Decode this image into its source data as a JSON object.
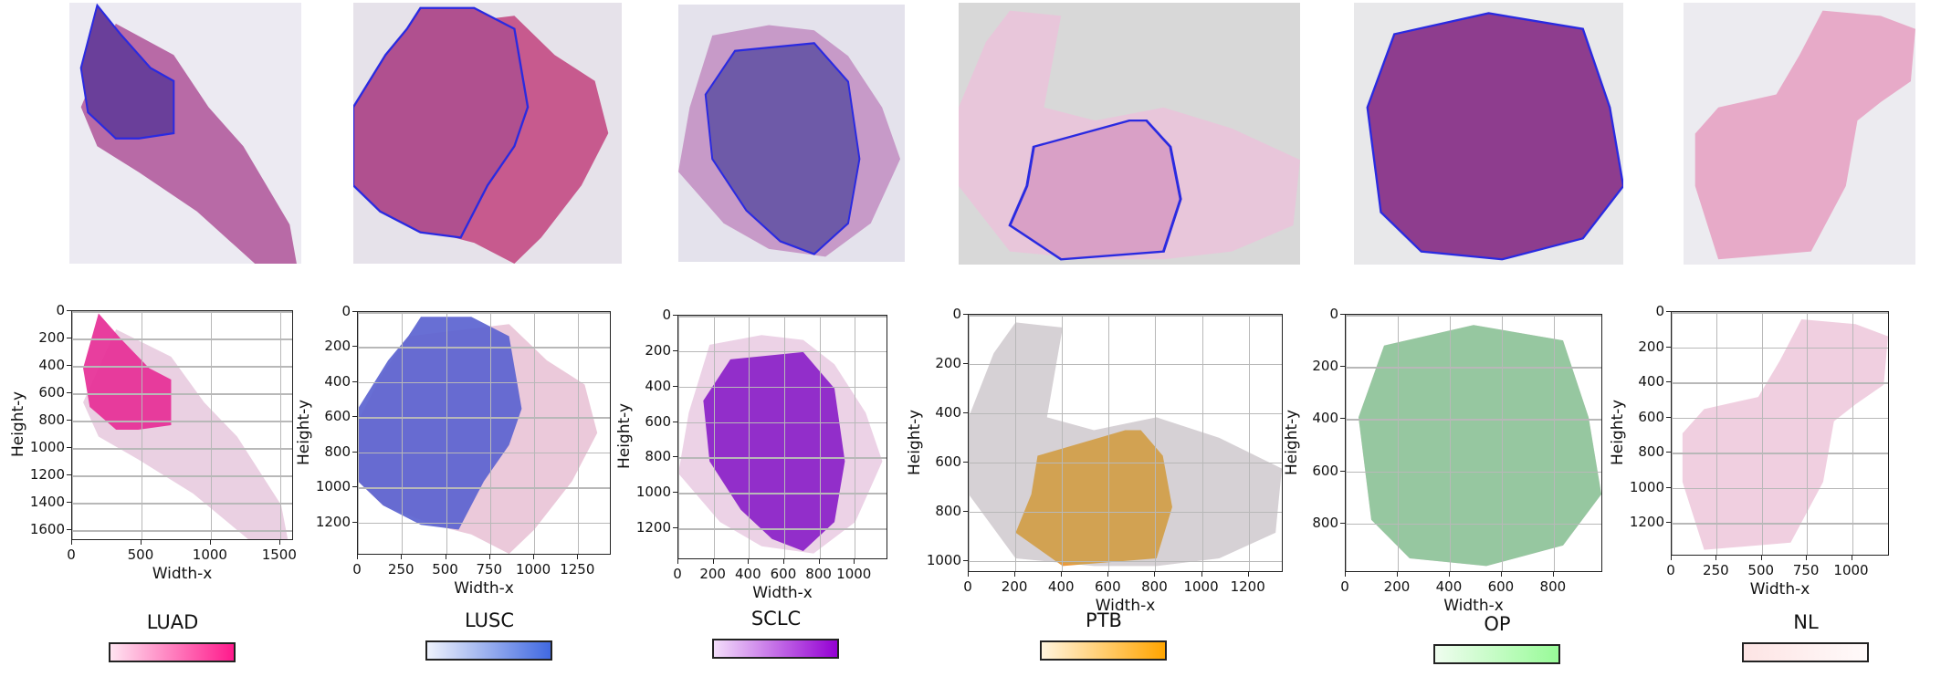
{
  "chart_data": [
    {
      "type": "heatmap",
      "class": "LUAD",
      "xlabel": "Width-x",
      "ylabel": "Height-y",
      "xticks": [
        0,
        500,
        1000,
        1500
      ],
      "yticks": [
        0,
        200,
        400,
        600,
        800,
        1000,
        1200,
        1400,
        1600
      ],
      "xlim": [
        0,
        1600
      ],
      "ylim": [
        1680,
        0
      ],
      "colorbar": [
        "#ffe4f1",
        "#ff1a8c"
      ],
      "grid": true
    },
    {
      "type": "heatmap",
      "class": "LUSC",
      "xlabel": "Width-x",
      "ylabel": "Height-y",
      "xticks": [
        0,
        250,
        500,
        750,
        1000,
        1250
      ],
      "yticks": [
        0,
        200,
        400,
        600,
        800,
        1000,
        1200
      ],
      "xlim": [
        0,
        1440
      ],
      "ylim": [
        1390,
        0
      ],
      "colorbar": [
        "#eef2fc",
        "#4169e1"
      ],
      "grid": true
    },
    {
      "type": "heatmap",
      "class": "SCLC",
      "xlabel": "Width-x",
      "ylabel": "Height-y",
      "xticks": [
        0,
        200,
        400,
        600,
        800,
        1000
      ],
      "yticks": [
        0,
        200,
        400,
        600,
        800,
        1000,
        1200
      ],
      "xlim": [
        0,
        1190
      ],
      "ylim": [
        1380,
        0
      ],
      "colorbar": [
        "#f3ddfa",
        "#9400d3"
      ],
      "grid": true
    },
    {
      "type": "heatmap",
      "class": "PTB",
      "xlabel": "Width-x",
      "ylabel": "Height-y",
      "xticks": [
        0,
        200,
        400,
        600,
        800,
        1000,
        1200
      ],
      "yticks": [
        0,
        200,
        400,
        600,
        800,
        1000
      ],
      "xlim": [
        0,
        1350
      ],
      "ylim": [
        1050,
        0
      ],
      "colorbar": [
        "#fff4dd",
        "#ffa500"
      ],
      "grid": true
    },
    {
      "type": "heatmap",
      "class": "OP",
      "xlabel": "Width-x",
      "ylabel": "Height-y",
      "xticks": [
        0,
        200,
        400,
        600,
        800
      ],
      "yticks": [
        0,
        200,
        400,
        600,
        800
      ],
      "xlim": [
        0,
        990
      ],
      "ylim": [
        990,
        0
      ],
      "colorbar": [
        "#effdef",
        "#98fb98"
      ],
      "grid": true
    },
    {
      "type": "heatmap",
      "class": "NL",
      "xlabel": "Width-x",
      "ylabel": "Height-y",
      "xticks": [
        0,
        250,
        500,
        750,
        1000
      ],
      "yticks": [
        0,
        200,
        400,
        600,
        800,
        1000,
        1200
      ],
      "xlim": [
        0,
        1210
      ],
      "ylim": [
        1390,
        0
      ],
      "colorbar": [
        "#fde4e4",
        "#fffafa"
      ],
      "grid": true
    }
  ],
  "colors": {
    "tissue_light": "#e9c6dc",
    "annotation_outline": "#2a2ae0",
    "orange": "#e8902a",
    "green": "#8fc79a"
  }
}
